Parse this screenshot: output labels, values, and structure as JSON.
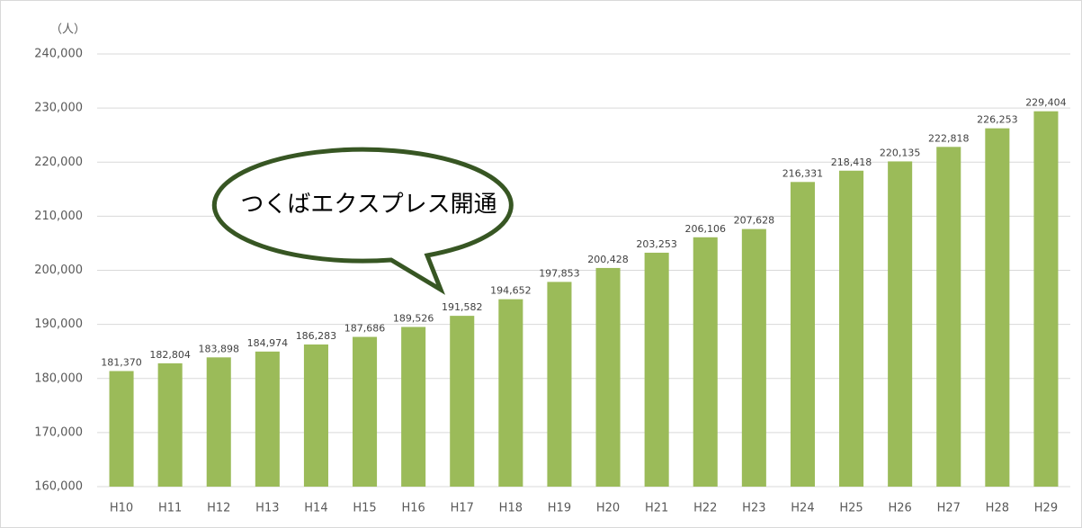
{
  "chart_data": {
    "type": "bar",
    "y_unit_label": "（人）",
    "annotation": "つくばエクスプレス開通",
    "categories": [
      "H10",
      "H11",
      "H12",
      "H13",
      "H14",
      "H15",
      "H16",
      "H17",
      "H18",
      "H19",
      "H20",
      "H21",
      "H22",
      "H23",
      "H24",
      "H25",
      "H26",
      "H27",
      "H28",
      "H29"
    ],
    "values": [
      181370,
      182804,
      183898,
      184974,
      186283,
      187686,
      189526,
      191582,
      194652,
      197853,
      200428,
      203253,
      206106,
      207628,
      216331,
      218418,
      220135,
      222818,
      226253,
      229404
    ],
    "value_labels": [
      "181,370",
      "182,804",
      "183,898",
      "184,974",
      "186,283",
      "187,686",
      "189,526",
      "191,582",
      "194,652",
      "197,853",
      "200,428",
      "203,253",
      "206,106",
      "207,628",
      "216,331",
      "218,418",
      "220,135",
      "222,818",
      "226,253",
      "229,404"
    ],
    "color": "#9bbb59",
    "ylim": [
      160000,
      240000
    ],
    "yticks": [
      {
        "value": 160000,
        "label": "160,000"
      },
      {
        "value": 170000,
        "label": "170,000"
      },
      {
        "value": 180000,
        "label": "180,000"
      },
      {
        "value": 190000,
        "label": "190,000"
      },
      {
        "value": 200000,
        "label": "200,000"
      },
      {
        "value": 210000,
        "label": "210,000"
      },
      {
        "value": 220000,
        "label": "220,000"
      },
      {
        "value": 230000,
        "label": "230,000"
      },
      {
        "value": 240000,
        "label": "240,000"
      }
    ],
    "grid": true
  }
}
